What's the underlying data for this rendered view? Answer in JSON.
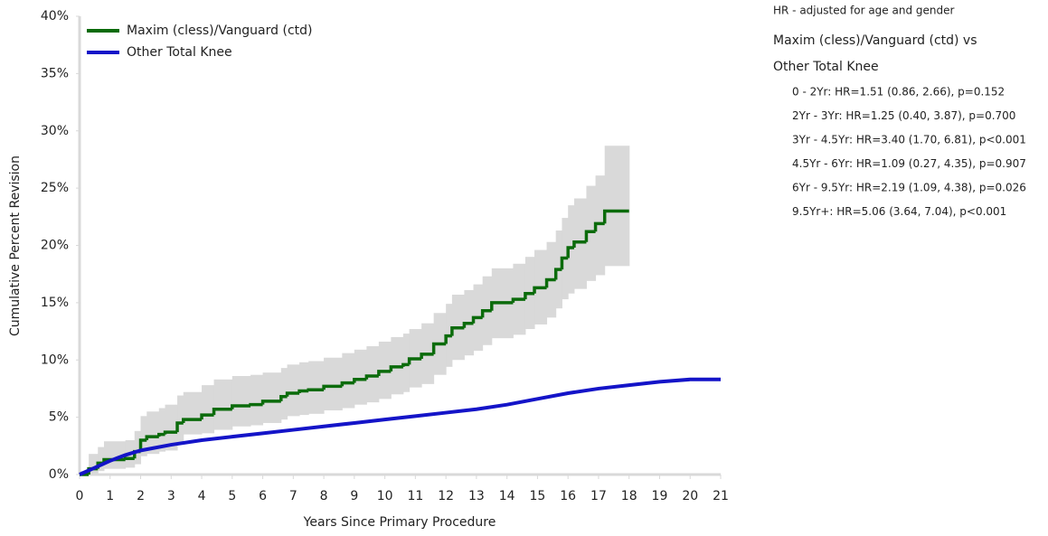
{
  "chart_data": {
    "type": "step-line",
    "xlabel": "Years Since Primary Procedure",
    "ylabel": "Cumulative Percent Revision",
    "xlim": [
      0,
      21
    ],
    "xticks": [
      0,
      1,
      2,
      3,
      4,
      5,
      6,
      7,
      8,
      9,
      10,
      11,
      12,
      13,
      14,
      15,
      16,
      17,
      18,
      19,
      20,
      21
    ],
    "ylim": [
      0,
      40
    ],
    "yticks": [
      {
        "value": 0,
        "label": "0%"
      },
      {
        "value": 5,
        "label": "5%"
      },
      {
        "value": 10,
        "label": "10%"
      },
      {
        "value": 15,
        "label": "15%"
      },
      {
        "value": 20,
        "label": "20%"
      },
      {
        "value": 25,
        "label": "25%"
      },
      {
        "value": 30,
        "label": "30%"
      },
      {
        "value": 35,
        "label": "35%"
      },
      {
        "value": 40,
        "label": "40%"
      }
    ],
    "legend": "top-left",
    "band_color": "#d9d9d9",
    "series": [
      {
        "name": "Maxim (cless)/Vanguard (ctd)",
        "color": "#0b6b0b",
        "step": true,
        "x": [
          0,
          0.3,
          0.6,
          0.8,
          1.5,
          1.8,
          2.0,
          2.2,
          2.6,
          2.8,
          3.2,
          3.4,
          4.0,
          4.4,
          5.0,
          5.6,
          6.0,
          6.6,
          6.8,
          7.2,
          7.5,
          8.0,
          8.6,
          9.0,
          9.4,
          9.8,
          10.2,
          10.6,
          10.8,
          11.2,
          11.6,
          12.0,
          12.2,
          12.6,
          12.9,
          13.2,
          13.5,
          14.2,
          14.6,
          14.9,
          15.3,
          15.6,
          15.8,
          16.0,
          16.2,
          16.6,
          16.9,
          17.2,
          18.0
        ],
        "values": [
          0,
          0.5,
          1.0,
          1.3,
          1.4,
          2.0,
          3.0,
          3.3,
          3.5,
          3.7,
          4.5,
          4.8,
          5.2,
          5.7,
          6.0,
          6.1,
          6.4,
          6.8,
          7.1,
          7.3,
          7.4,
          7.7,
          8.0,
          8.3,
          8.6,
          9.0,
          9.4,
          9.6,
          10.1,
          10.5,
          11.4,
          12.1,
          12.8,
          13.2,
          13.7,
          14.3,
          15.0,
          15.3,
          15.8,
          16.3,
          17.0,
          17.9,
          18.9,
          19.8,
          20.3,
          21.2,
          21.9,
          23.0,
          23.0
        ],
        "lower": [
          0,
          0.1,
          0.3,
          0.5,
          0.6,
          0.9,
          1.6,
          1.8,
          2.0,
          2.1,
          2.8,
          3.5,
          3.6,
          3.9,
          4.2,
          4.3,
          4.5,
          4.8,
          5.1,
          5.2,
          5.3,
          5.6,
          5.8,
          6.1,
          6.3,
          6.6,
          7.0,
          7.2,
          7.6,
          7.9,
          8.7,
          9.4,
          10.0,
          10.4,
          10.8,
          11.3,
          11.9,
          12.2,
          12.7,
          13.1,
          13.7,
          14.5,
          15.3,
          15.8,
          16.2,
          16.9,
          17.4,
          18.2,
          18.2
        ],
        "upper": [
          0.3,
          1.8,
          2.4,
          2.9,
          3.0,
          3.8,
          5.1,
          5.5,
          5.8,
          6.1,
          6.9,
          7.2,
          7.8,
          8.3,
          8.6,
          8.7,
          8.9,
          9.3,
          9.6,
          9.8,
          9.9,
          10.2,
          10.6,
          10.9,
          11.2,
          11.6,
          12.0,
          12.3,
          12.7,
          13.2,
          14.1,
          14.9,
          15.7,
          16.1,
          16.6,
          17.3,
          18.0,
          18.4,
          19.0,
          19.6,
          20.3,
          21.3,
          22.4,
          23.5,
          24.1,
          25.2,
          26.1,
          28.7,
          28.7
        ]
      },
      {
        "name": "Other Total Knee",
        "color": "#1414c8",
        "step": false,
        "x": [
          0,
          0.5,
          1,
          1.5,
          2,
          3,
          4,
          5,
          6,
          7,
          8,
          9,
          10,
          11,
          12,
          13,
          14,
          15,
          16,
          17,
          18,
          19,
          20,
          21
        ],
        "values": [
          0,
          0.6,
          1.2,
          1.7,
          2.1,
          2.6,
          3.0,
          3.3,
          3.6,
          3.9,
          4.2,
          4.5,
          4.8,
          5.1,
          5.4,
          5.7,
          6.1,
          6.6,
          7.1,
          7.5,
          7.8,
          8.1,
          8.3,
          8.3
        ]
      }
    ],
    "annotations": {
      "note": "HR - adjusted for age and gender",
      "comparison": [
        "Maxim (cless)/Vanguard (ctd) vs",
        "Other Total Knee"
      ],
      "lines": [
        "0 - 2Yr: HR=1.51 (0.86, 2.66), p=0.152",
        "2Yr - 3Yr: HR=1.25 (0.40, 3.87), p=0.700",
        "3Yr - 4.5Yr: HR=3.40 (1.70, 6.81), p<0.001",
        "4.5Yr - 6Yr: HR=1.09 (0.27, 4.35), p=0.907",
        "6Yr - 9.5Yr: HR=2.19 (1.09, 4.38), p=0.026",
        "9.5Yr+: HR=5.06 (3.64, 7.04), p<0.001"
      ]
    }
  }
}
